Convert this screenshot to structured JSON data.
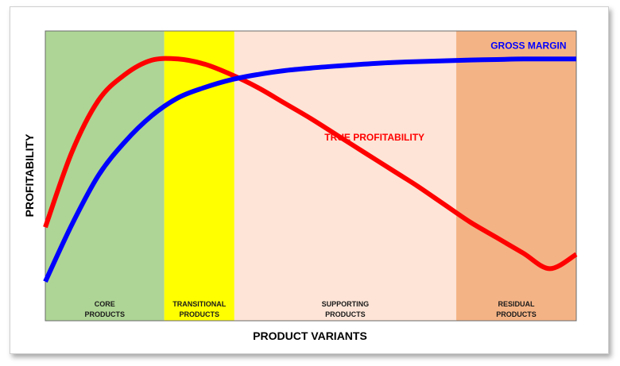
{
  "chart_data": {
    "type": "line",
    "title": "",
    "xlabel": "PRODUCT VARIANTS",
    "ylabel": "PROFITABILITY",
    "grid": false,
    "x": [
      0,
      5,
      10,
      15,
      20,
      25,
      30,
      35,
      40,
      45,
      50,
      55,
      60,
      65,
      70,
      75,
      80,
      85,
      90,
      95,
      100
    ],
    "ylim": [
      0,
      100
    ],
    "xlim": [
      0,
      100
    ],
    "series": [
      {
        "name": "GROSS MARGIN",
        "color": "#0000ff",
        "values": [
          9,
          31,
          50,
          63,
          73,
          80,
          84,
          87,
          89,
          90.5,
          91.5,
          92.3,
          93,
          93.6,
          94,
          94.3,
          94.6,
          94.8,
          95,
          95,
          95
        ]
      },
      {
        "name": "TRUE PROFITABILITY",
        "color": "#ff0000",
        "values": [
          30,
          59,
          79,
          89,
          94.5,
          95,
          93,
          89,
          84,
          78,
          72,
          65.5,
          59,
          52.5,
          46,
          39,
          32,
          26,
          20,
          14,
          19.5
        ]
      }
    ],
    "bands": [
      {
        "label_line1": "CORE",
        "label_line2": "PRODUCTS",
        "x_from": 0,
        "x_to": 22.4,
        "color": "#aed595"
      },
      {
        "label_line1": "TRANSITIONAL",
        "label_line2": "PRODUCTS",
        "x_from": 22.4,
        "x_to": 35.6,
        "color": "#ffff00"
      },
      {
        "label_line1": "SUPPORTING",
        "label_line2": "PRODUCTS",
        "x_from": 35.6,
        "x_to": 77.4,
        "color": "#fde4d6"
      },
      {
        "label_line1": "RESIDUAL",
        "label_line2": "PRODUCTS",
        "x_from": 77.4,
        "x_to": 100,
        "color": "#f4b385"
      }
    ],
    "series_labels": [
      {
        "text": "GROSS MARGIN",
        "series": 0,
        "x": 91,
        "y": 99
      },
      {
        "text": "TRUE PROFITABILITY",
        "series": 1,
        "x": 62,
        "y": 63.5
      }
    ]
  }
}
